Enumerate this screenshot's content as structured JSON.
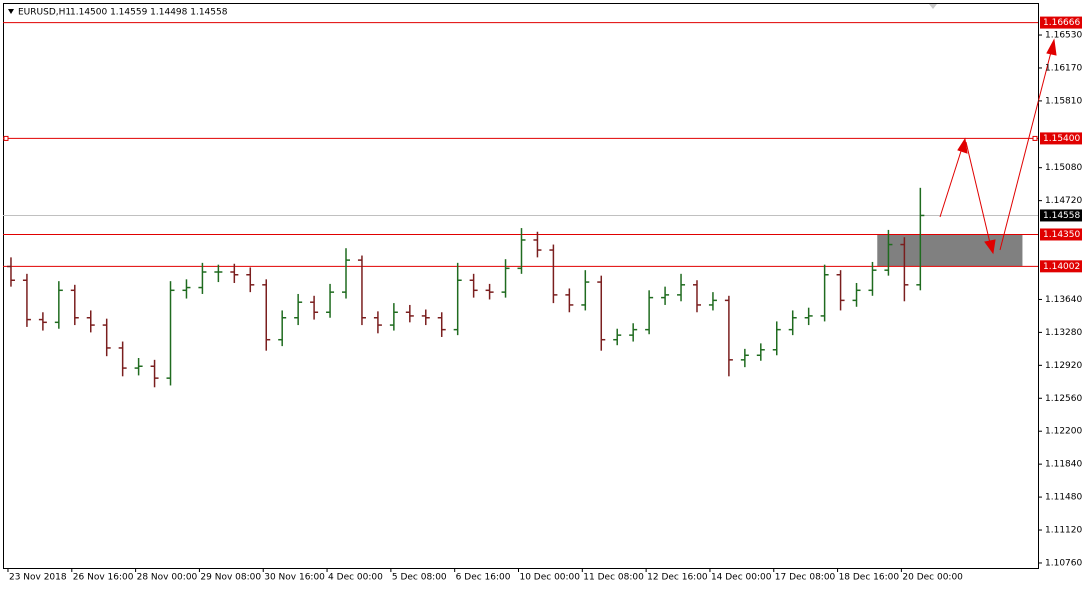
{
  "chart_data": {
    "type": "ohlc",
    "title": "EURUSD,H1",
    "subtitle": "1.14500 1.14559 1.14498 1.14558",
    "up_color": "#1f6b1f",
    "down_color": "#7a1e1e",
    "open": [
      1.14,
      1.1385,
      1.1342,
      1.1339,
      1.1374,
      1.1344,
      1.1336,
      1.1311,
      1.1289,
      1.1291,
      1.1278,
      1.1374,
      1.1377,
      1.1394,
      1.1394,
      1.1391,
      1.138,
      1.132,
      1.1344,
      1.1361,
      1.135,
      1.1372,
      1.1407,
      1.1344,
      1.1336,
      1.135,
      1.1346,
      1.1344,
      1.1331,
      1.1385,
      1.1374,
      1.1372,
      1.1398,
      1.1429,
      1.1418,
      1.1369,
      1.1358,
      1.1383,
      1.132,
      1.1325,
      1.1331,
      1.1366,
      1.1369,
      1.138,
      1.1358,
      1.1363,
      1.1298,
      1.1303,
      1.1309,
      1.1331,
      1.1344,
      1.1346,
      1.1391,
      1.1363,
      1.1374,
      1.1396,
      1.1424,
      1.138
    ],
    "high": [
      1.141,
      1.1392,
      1.135,
      1.1384,
      1.138,
      1.1352,
      1.1343,
      1.1318,
      1.13,
      1.1298,
      1.1384,
      1.1386,
      1.1404,
      1.1402,
      1.1403,
      1.1399,
      1.1386,
      1.1352,
      1.137,
      1.1368,
      1.1381,
      1.142,
      1.1412,
      1.1351,
      1.136,
      1.1358,
      1.1353,
      1.135,
      1.1404,
      1.1392,
      1.1381,
      1.1408,
      1.1442,
      1.1438,
      1.1424,
      1.1376,
      1.1396,
      1.139,
      1.1332,
      1.1338,
      1.1374,
      1.1378,
      1.1392,
      1.1385,
      1.1372,
      1.1368,
      1.131,
      1.1316,
      1.134,
      1.1352,
      1.1355,
      1.1402,
      1.1396,
      1.1382,
      1.1405,
      1.144,
      1.1432,
      1.1486
    ],
    "low": [
      1.1378,
      1.1334,
      1.133,
      1.1332,
      1.1336,
      1.1328,
      1.1302,
      1.128,
      1.1281,
      1.1268,
      1.127,
      1.1365,
      1.137,
      1.1383,
      1.1382,
      1.1372,
      1.1308,
      1.1313,
      1.1336,
      1.1342,
      1.1344,
      1.1365,
      1.1336,
      1.1327,
      1.133,
      1.1339,
      1.1336,
      1.1323,
      1.1325,
      1.1366,
      1.1364,
      1.1366,
      1.1392,
      1.141,
      1.136,
      1.135,
      1.1352,
      1.1308,
      1.1314,
      1.1318,
      1.1326,
      1.1358,
      1.1362,
      1.135,
      1.1352,
      1.128,
      1.129,
      1.1297,
      1.1303,
      1.1325,
      1.1336,
      1.134,
      1.1352,
      1.1356,
      1.1368,
      1.139,
      1.1362,
      1.1374
    ],
    "close": [
      1.1385,
      1.1342,
      1.1339,
      1.1374,
      1.1344,
      1.1336,
      1.1311,
      1.1289,
      1.1291,
      1.1278,
      1.1374,
      1.1377,
      1.1394,
      1.1394,
      1.1391,
      1.138,
      1.132,
      1.1344,
      1.1361,
      1.135,
      1.1372,
      1.1407,
      1.1344,
      1.1336,
      1.135,
      1.1346,
      1.1344,
      1.1331,
      1.1385,
      1.1374,
      1.1372,
      1.1398,
      1.1429,
      1.1418,
      1.1369,
      1.1358,
      1.1383,
      1.132,
      1.1325,
      1.1331,
      1.1366,
      1.1369,
      1.138,
      1.1358,
      1.1363,
      1.1298,
      1.1303,
      1.1309,
      1.1331,
      1.1344,
      1.1346,
      1.1391,
      1.1363,
      1.1374,
      1.1396,
      1.1424,
      1.138,
      1.14558
    ],
    "xlim": [
      -0.5,
      64.375
    ],
    "xticks": [
      {
        "value": 0,
        "label": "23 Nov 2018"
      },
      {
        "value": 4,
        "label": "26 Nov 16:00"
      },
      {
        "value": 8,
        "label": "28 Nov 00:00"
      },
      {
        "value": 12,
        "label": "29 Nov 08:00"
      },
      {
        "value": 16,
        "label": "30 Nov 16:00"
      },
      {
        "value": 20,
        "label": "4 Dec 00:00"
      },
      {
        "value": 24,
        "label": "5 Dec 08:00"
      },
      {
        "value": 28,
        "label": "6 Dec 16:00"
      },
      {
        "value": 32,
        "label": "10 Dec 00:00"
      },
      {
        "value": 36,
        "label": "11 Dec 08:00"
      },
      {
        "value": 40,
        "label": "12 Dec 16:00"
      },
      {
        "value": 44,
        "label": "14 Dec 00:00"
      },
      {
        "value": 48,
        "label": "17 Dec 08:00"
      },
      {
        "value": 52,
        "label": "18 Dec 16:00"
      },
      {
        "value": 56,
        "label": "20 Dec 00:00"
      }
    ],
    "ylim": [
      1.10705,
      1.1688
    ],
    "yticks": [
      {
        "value": 1.1653,
        "label": "1.16530"
      },
      {
        "value": 1.1617,
        "label": "1.16170"
      },
      {
        "value": 1.1581,
        "label": "1.15810"
      },
      {
        "value": 1.1508,
        "label": "1.15080"
      },
      {
        "value": 1.1472,
        "label": "1.14720"
      },
      {
        "value": 1.1364,
        "label": "1.13640"
      },
      {
        "value": 1.1328,
        "label": "1.13280"
      },
      {
        "value": 1.1292,
        "label": "1.12920"
      },
      {
        "value": 1.1256,
        "label": "1.12560"
      },
      {
        "value": 1.122,
        "label": "1.12200"
      },
      {
        "value": 1.1184,
        "label": "1.11840"
      },
      {
        "value": 1.1148,
        "label": "1.11480"
      },
      {
        "value": 1.1112,
        "label": "1.11120"
      },
      {
        "value": 1.1076,
        "label": "1.10760"
      }
    ],
    "levels": [
      1.16666,
      {
        "value": 1.154,
        "label": "1.15400"
      },
      {
        "value": 1.1435,
        "label": "1.14350"
      },
      1.14002
    ],
    "level_color": "#e00000",
    "last_price": 1.14558,
    "last_price_color": "#c0c0c0",
    "zone": {
      "x": [
        54.3,
        63.4
      ],
      "y": [
        1.14002,
        1.1435
      ],
      "color": "#808080"
    }
  }
}
